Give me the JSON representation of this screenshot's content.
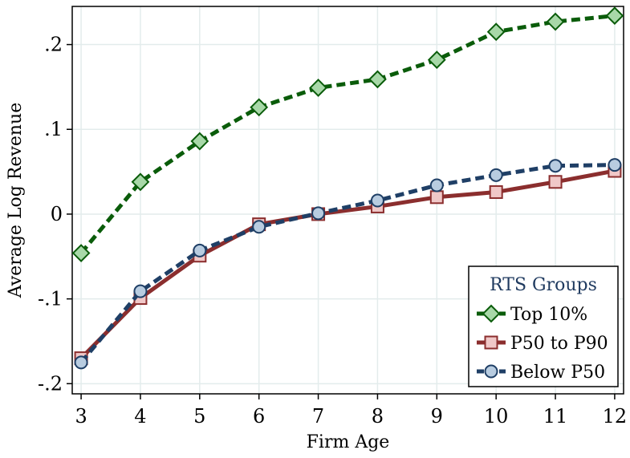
{
  "chart_data": {
    "type": "line",
    "title": "",
    "xlabel": "Firm Age",
    "ylabel": "Average Log Revenue",
    "x": [
      3,
      4,
      5,
      6,
      7,
      8,
      9,
      10,
      11,
      12
    ],
    "xlim": [
      2.85,
      12.15
    ],
    "ylim": [
      -0.212,
      0.245
    ],
    "x_ticks": [
      3,
      4,
      5,
      6,
      7,
      8,
      9,
      10,
      11,
      12
    ],
    "x_tick_labels": [
      "3",
      "4",
      "5",
      "6",
      "7",
      "8",
      "9",
      "10",
      "11",
      "12"
    ],
    "y_ticks": [
      -0.2,
      -0.1,
      0,
      0.1,
      0.2
    ],
    "y_tick_labels": [
      "-.2",
      "-.1",
      "0",
      ".1",
      ".2"
    ],
    "grid": true,
    "legend": {
      "title": "RTS Groups",
      "position": "bottom-right"
    },
    "series": [
      {
        "name": "Top 10%",
        "values": [
          -0.046,
          0.038,
          0.086,
          0.126,
          0.149,
          0.159,
          0.182,
          0.215,
          0.227,
          0.234
        ],
        "line_color": "#0a5c0a",
        "marker_fill": "#a8d8a8",
        "marker": "diamond",
        "dash": "dashed"
      },
      {
        "name": "P50 to P90",
        "values": [
          -0.17,
          -0.099,
          -0.049,
          -0.012,
          0.0,
          0.009,
          0.02,
          0.026,
          0.038,
          0.051
        ],
        "line_color": "#8b2e2e",
        "marker_fill": "#f0c8c8",
        "marker": "square",
        "dash": "solid"
      },
      {
        "name": "Below P50",
        "values": [
          -0.175,
          -0.091,
          -0.043,
          -0.015,
          0.001,
          0.016,
          0.034,
          0.046,
          0.057,
          0.058
        ],
        "line_color": "#1f3f66",
        "marker_fill": "#b8cce0",
        "marker": "circle",
        "dash": "dashed"
      }
    ]
  }
}
